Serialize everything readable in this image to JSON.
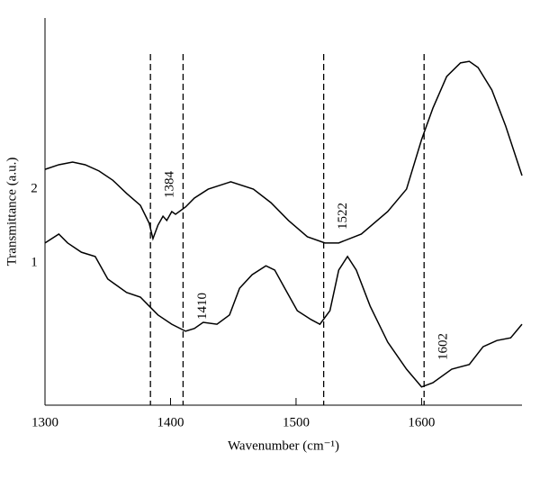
{
  "chart_data": {
    "type": "line",
    "xlabel": "Wavenumber (cm⁻¹)",
    "ylabel": "Transmittance (a.u.)",
    "xlim": [
      1300,
      1680
    ],
    "xticks": [
      1300,
      1400,
      1500,
      1600
    ],
    "ylim": [
      0,
      100
    ],
    "series": [
      {
        "name": "2",
        "color": "#000000",
        "x": [
          1300,
          1311,
          1322,
          1332,
          1343,
          1354,
          1365,
          1376,
          1383,
          1386,
          1390,
          1394,
          1397,
          1401,
          1404,
          1412,
          1419,
          1430,
          1448,
          1466,
          1480,
          1494,
          1509,
          1523,
          1534,
          1552,
          1573,
          1588,
          1600,
          1609,
          1620,
          1631,
          1638,
          1645,
          1656,
          1667,
          1680
        ],
        "values": [
          60.9,
          62.1,
          62.8,
          62.1,
          60.5,
          58.1,
          54.7,
          51.6,
          47,
          43,
          46.5,
          48.8,
          47.7,
          50,
          49.3,
          51.2,
          53.5,
          55.8,
          57.7,
          55.8,
          52.3,
          47.7,
          43.5,
          41.9,
          41.9,
          44.2,
          50,
          55.8,
          68.6,
          76.7,
          84.9,
          88.4,
          88.8,
          87.2,
          81.4,
          72.1,
          59.3
        ]
      },
      {
        "name": "1",
        "color": "#000000",
        "x": [
          1300,
          1311,
          1318,
          1329,
          1340,
          1350,
          1365,
          1376,
          1383,
          1390,
          1401,
          1412,
          1419,
          1426,
          1437,
          1447,
          1455,
          1465,
          1476,
          1483,
          1491,
          1501,
          1512,
          1519,
          1527,
          1534,
          1541,
          1548,
          1559,
          1573,
          1588,
          1600,
          1609,
          1624,
          1638,
          1649,
          1660,
          1671,
          1680
        ],
        "values": [
          41.9,
          44.2,
          41.9,
          39.5,
          38.4,
          32.6,
          29.1,
          27.9,
          25.6,
          23.3,
          20.9,
          19.1,
          19.8,
          21.4,
          20.9,
          23.3,
          30.2,
          33.7,
          36,
          34.9,
          30.2,
          24.4,
          22.1,
          20.9,
          24.4,
          34.9,
          38.4,
          34.9,
          25.6,
          16.3,
          9.3,
          4.7,
          5.8,
          9.3,
          10.5,
          15.1,
          16.7,
          17.4,
          20.9
        ]
      }
    ],
    "markers": [
      {
        "value": 1384,
        "label": "1384"
      },
      {
        "value": 1410,
        "label": "1410"
      },
      {
        "value": 1522,
        "label": "1522"
      },
      {
        "value": 1602,
        "label": "1602"
      }
    ]
  }
}
